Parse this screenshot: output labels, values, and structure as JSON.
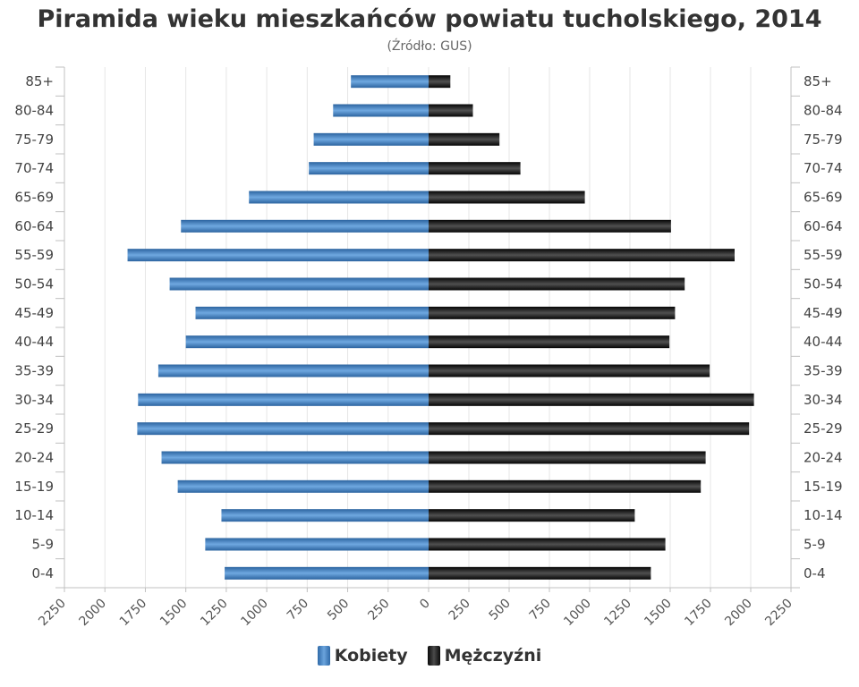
{
  "chart_data": {
    "type": "bar",
    "orientation": "horizontal-diverging",
    "title": "Piramida wieku mieszkańców powiatu tucholskiego, 2014",
    "subtitle": "(Źródło: GUS)",
    "categories": [
      "0-4",
      "5-9",
      "10-14",
      "15-19",
      "20-24",
      "25-29",
      "30-34",
      "35-39",
      "40-44",
      "45-49",
      "50-54",
      "55-59",
      "60-64",
      "65-69",
      "70-74",
      "75-79",
      "80-84",
      "85+"
    ],
    "series": [
      {
        "name": "Kobiety",
        "color": "#4a86c5",
        "values": [
          1260,
          1380,
          1280,
          1550,
          1650,
          1800,
          1795,
          1670,
          1500,
          1440,
          1600,
          1860,
          1530,
          1110,
          740,
          710,
          590,
          480
        ]
      },
      {
        "name": "Mężczyźni",
        "color": "#1a1a1a",
        "values": [
          1380,
          1470,
          1280,
          1690,
          1720,
          1990,
          2020,
          1745,
          1495,
          1530,
          1590,
          1900,
          1505,
          970,
          570,
          440,
          275,
          135
        ]
      }
    ],
    "xlim": [
      -2250,
      2250
    ],
    "xticks": [
      -2250,
      -2000,
      -1750,
      -1500,
      -1250,
      -1000,
      -750,
      -500,
      -250,
      0,
      250,
      500,
      750,
      1000,
      1250,
      1500,
      1750,
      2000,
      2250
    ],
    "xtick_labels": [
      "2250",
      "2000",
      "1750",
      "1500",
      "1250",
      "1000",
      "750",
      "500",
      "250",
      "0",
      "250",
      "500",
      "750",
      "1000",
      "1250",
      "1500",
      "1750",
      "2000",
      "2250"
    ],
    "grid": true,
    "legend": "bottom-center"
  }
}
